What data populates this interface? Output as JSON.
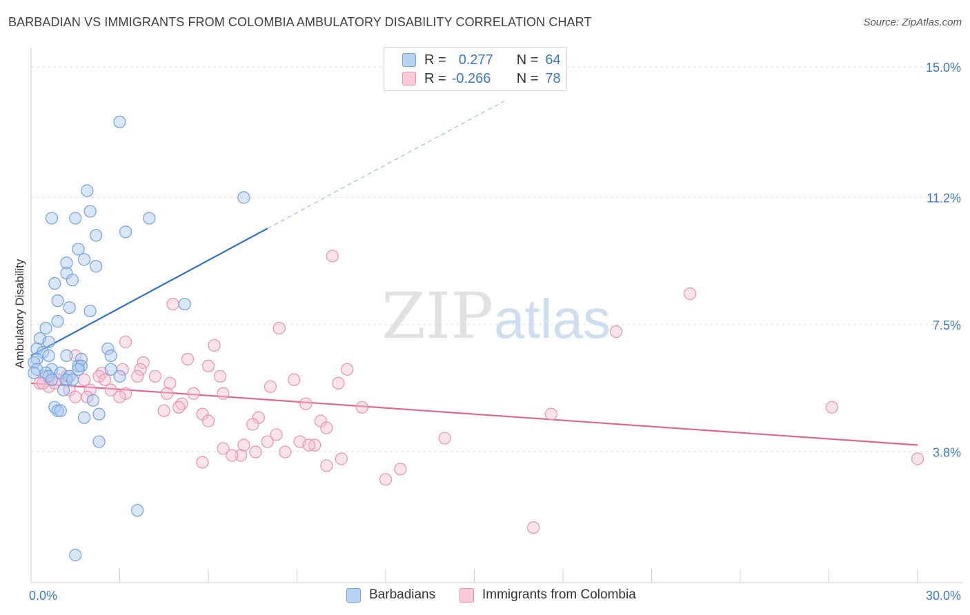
{
  "chart_data": {
    "type": "scatter",
    "title": "BARBADIAN VS IMMIGRANTS FROM COLOMBIA AMBULATORY DISABILITY CORRELATION CHART",
    "source": "Source: ZipAtlas.com",
    "watermark": "ZIPatlas",
    "xlabel": "",
    "ylabel": "Ambulatory Disability",
    "xlim": [
      0,
      30
    ],
    "ylim": [
      0,
      15.8
    ],
    "x_tick_labels": [
      {
        "value": 0,
        "label": "0.0%"
      },
      {
        "value": 30,
        "label": "30.0%"
      }
    ],
    "y_tick_labels": [
      {
        "value": 3.8,
        "label": "3.8%"
      },
      {
        "value": 7.5,
        "label": "7.5%"
      },
      {
        "value": 11.2,
        "label": "11.2%"
      },
      {
        "value": 15.0,
        "label": "15.0%"
      }
    ],
    "series": [
      {
        "name": "Barbadians",
        "color": "#6fa0e0",
        "fill": "#aac8f0",
        "R": "0.277",
        "N": "64",
        "trend": {
          "x0": 0.0,
          "y0": 6.6,
          "x1": 8.0,
          "y1": 10.3,
          "dash_to_x": 16.0,
          "dash_to_y": 14.0,
          "color": "#2f6fcc"
        },
        "points": [
          [
            3.0,
            13.4
          ],
          [
            1.9,
            11.4
          ],
          [
            7.2,
            11.2
          ],
          [
            0.7,
            10.6
          ],
          [
            1.5,
            10.6
          ],
          [
            2.0,
            10.8
          ],
          [
            4.0,
            10.6
          ],
          [
            2.2,
            10.1
          ],
          [
            3.2,
            10.2
          ],
          [
            1.6,
            9.7
          ],
          [
            1.8,
            9.4
          ],
          [
            1.2,
            9.3
          ],
          [
            2.2,
            9.2
          ],
          [
            1.2,
            9.0
          ],
          [
            1.4,
            8.8
          ],
          [
            0.8,
            8.7
          ],
          [
            0.9,
            8.2
          ],
          [
            5.2,
            8.1
          ],
          [
            1.3,
            8.0
          ],
          [
            2.0,
            7.9
          ],
          [
            0.9,
            7.6
          ],
          [
            0.5,
            7.4
          ],
          [
            0.3,
            7.1
          ],
          [
            0.6,
            7.0
          ],
          [
            0.2,
            6.8
          ],
          [
            0.4,
            6.7
          ],
          [
            1.2,
            6.6
          ],
          [
            0.6,
            6.6
          ],
          [
            2.6,
            6.8
          ],
          [
            2.7,
            6.6
          ],
          [
            1.7,
            6.5
          ],
          [
            0.2,
            6.5
          ],
          [
            0.1,
            6.4
          ],
          [
            1.6,
            6.3
          ],
          [
            1.7,
            6.3
          ],
          [
            1.6,
            6.2
          ],
          [
            0.7,
            6.2
          ],
          [
            1.0,
            6.1
          ],
          [
            0.2,
            6.2
          ],
          [
            0.5,
            6.1
          ],
          [
            2.7,
            6.2
          ],
          [
            3.0,
            6.0
          ],
          [
            1.3,
            6.0
          ],
          [
            0.6,
            6.0
          ],
          [
            0.1,
            6.1
          ],
          [
            0.7,
            5.9
          ],
          [
            1.2,
            5.9
          ],
          [
            1.4,
            5.9
          ],
          [
            1.1,
            5.6
          ],
          [
            2.1,
            5.3
          ],
          [
            0.8,
            5.1
          ],
          [
            0.9,
            5.0
          ],
          [
            1.0,
            5.0
          ],
          [
            2.3,
            4.9
          ],
          [
            1.8,
            4.8
          ],
          [
            2.3,
            4.1
          ],
          [
            3.6,
            2.1
          ],
          [
            1.5,
            0.8
          ]
        ]
      },
      {
        "name": "Immigrants from Colombia",
        "color": "#ec8fae",
        "fill": "#f7c2d3",
        "R": "-0.266",
        "N": "78",
        "trend": {
          "x0": 0.0,
          "y0": 5.8,
          "x1": 30.0,
          "y1": 4.0,
          "color": "#e2648f"
        },
        "points": [
          [
            10.2,
            9.5
          ],
          [
            22.3,
            8.4
          ],
          [
            4.8,
            8.1
          ],
          [
            8.4,
            7.4
          ],
          [
            19.8,
            7.3
          ],
          [
            3.2,
            7.0
          ],
          [
            6.2,
            6.9
          ],
          [
            1.5,
            6.6
          ],
          [
            5.3,
            6.5
          ],
          [
            3.8,
            6.4
          ],
          [
            6.0,
            6.3
          ],
          [
            3.1,
            6.2
          ],
          [
            3.7,
            6.2
          ],
          [
            10.7,
            6.2
          ],
          [
            2.4,
            6.1
          ],
          [
            4.2,
            6.0
          ],
          [
            6.4,
            6.0
          ],
          [
            3.6,
            6.0
          ],
          [
            0.5,
            6.0
          ],
          [
            1.2,
            6.0
          ],
          [
            2.3,
            6.0
          ],
          [
            1.8,
            5.9
          ],
          [
            0.9,
            5.9
          ],
          [
            0.3,
            5.8
          ],
          [
            2.5,
            5.9
          ],
          [
            4.7,
            5.8
          ],
          [
            8.9,
            5.9
          ],
          [
            10.4,
            5.8
          ],
          [
            0.6,
            5.7
          ],
          [
            0.8,
            5.8
          ],
          [
            0.4,
            5.8
          ],
          [
            1.3,
            5.6
          ],
          [
            2.0,
            5.6
          ],
          [
            2.7,
            5.6
          ],
          [
            3.2,
            5.5
          ],
          [
            4.6,
            5.5
          ],
          [
            5.5,
            5.5
          ],
          [
            6.5,
            5.5
          ],
          [
            8.1,
            5.7
          ],
          [
            1.5,
            5.4
          ],
          [
            1.9,
            5.4
          ],
          [
            3.0,
            5.4
          ],
          [
            5.1,
            5.2
          ],
          [
            5.0,
            5.1
          ],
          [
            4.5,
            5.0
          ],
          [
            11.2,
            5.1
          ],
          [
            9.3,
            5.2
          ],
          [
            27.1,
            5.1
          ],
          [
            17.6,
            4.9
          ],
          [
            5.8,
            4.9
          ],
          [
            7.7,
            4.8
          ],
          [
            6.0,
            4.7
          ],
          [
            7.5,
            4.6
          ],
          [
            9.8,
            4.7
          ],
          [
            10.0,
            4.5
          ],
          [
            8.3,
            4.3
          ],
          [
            14.0,
            4.2
          ],
          [
            8.0,
            4.1
          ],
          [
            7.2,
            4.0
          ],
          [
            9.1,
            4.1
          ],
          [
            9.6,
            4.0
          ],
          [
            9.4,
            4.0
          ],
          [
            6.5,
            3.9
          ],
          [
            7.6,
            3.8
          ],
          [
            8.6,
            3.8
          ],
          [
            7.1,
            3.7
          ],
          [
            6.8,
            3.7
          ],
          [
            10.5,
            3.6
          ],
          [
            5.8,
            3.5
          ],
          [
            10.0,
            3.4
          ],
          [
            12.5,
            3.3
          ],
          [
            30.0,
            3.6
          ],
          [
            12.0,
            3.0
          ],
          [
            17.0,
            1.6
          ]
        ]
      }
    ]
  },
  "legend_top": {
    "r_label": "R =",
    "n_label": "N =",
    "rows": [
      {
        "r": "0.277",
        "n": "64",
        "fill": "#b9d3f3",
        "stroke": "#6fa0e0"
      },
      {
        "r": "-0.266",
        "n": "78",
        "fill": "#f9cad9",
        "stroke": "#ec8fae"
      }
    ]
  },
  "legend_bottom": {
    "items": [
      {
        "label": "Barbadians",
        "fill": "#b9d3f3",
        "stroke": "#6fa0e0"
      },
      {
        "label": "Immigrants from Colombia",
        "fill": "#f9cad9",
        "stroke": "#ec8fae"
      }
    ]
  },
  "colors": {
    "axis_text": "#3a78c9",
    "grid": "#dddddd",
    "axis": "#cccccc",
    "title": "#3f3f3f"
  }
}
